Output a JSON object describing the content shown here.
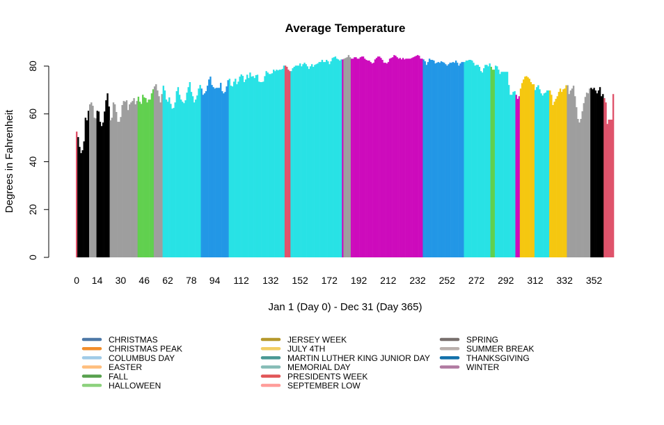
{
  "chart_data": {
    "type": "bar",
    "title": "Average Temperature",
    "xlabel": "Jan 1 (Day 0) - Dec 31 (Day 365)",
    "ylabel": "Degrees in Fahrenheit",
    "ylim": [
      0,
      80
    ],
    "y_ticks": [
      0,
      20,
      40,
      60,
      80
    ],
    "x_ticks": [
      0,
      14,
      30,
      46,
      62,
      78,
      94,
      112,
      132,
      152,
      172,
      192,
      212,
      232,
      252,
      272,
      292,
      312,
      332,
      352
    ],
    "grid": false,
    "legend_placement": "bottom",
    "x_start_day": 0,
    "values": [
      52.6,
      50.3,
      46.2,
      43.6,
      44.8,
      48.5,
      58.4,
      57.3,
      61.3,
      64.0,
      64.8,
      63.4,
      58.4,
      58.1,
      61.3,
      61.0,
      56.7,
      54.9,
      56.4,
      61.0,
      65.7,
      68.6,
      63.1,
      57.3,
      58.4,
      64.8,
      64.0,
      60.8,
      56.7,
      56.7,
      58.7,
      63.7,
      65.4,
      65.1,
      65.7,
      61.6,
      64.0,
      64.8,
      65.4,
      66.6,
      64.0,
      65.4,
      67.2,
      65.1,
      64.2,
      68.0,
      66.9,
      66.6,
      64.8,
      66.0,
      66.0,
      68.6,
      70.3,
      71.5,
      72.4,
      69.8,
      67.4,
      64.8,
      68.3,
      71.8,
      69.8,
      66.0,
      65.1,
      66.9,
      64.2,
      62.2,
      62.5,
      64.8,
      69.5,
      71.2,
      68.0,
      66.0,
      65.1,
      64.5,
      65.7,
      68.9,
      71.2,
      73.3,
      69.2,
      67.4,
      64.8,
      66.0,
      67.7,
      70.6,
      72.1,
      70.6,
      68.0,
      68.6,
      69.5,
      71.8,
      74.4,
      75.6,
      72.1,
      71.2,
      70.6,
      70.9,
      70.9,
      70.9,
      73.0,
      69.5,
      68.6,
      69.2,
      71.5,
      74.1,
      74.7,
      71.8,
      71.5,
      73.5,
      74.7,
      72.4,
      73.5,
      75.6,
      76.5,
      75.9,
      73.3,
      74.4,
      76.4,
      75.0,
      77.3,
      75.6,
      75.8,
      75.0,
      76.2,
      76.4,
      73.5,
      73.3,
      73.3,
      73.5,
      75.8,
      77.9,
      77.3,
      76.7,
      76.7,
      77.0,
      78.5,
      77.9,
      78.5,
      78.2,
      78.5,
      78.5,
      78.8,
      80.2,
      80.2,
      79.7,
      78.5,
      77.9,
      77.9,
      79.1,
      79.7,
      80.2,
      80.2,
      80.2,
      81.1,
      79.9,
      80.8,
      81.4,
      80.8,
      79.9,
      78.8,
      79.9,
      80.8,
      79.7,
      80.5,
      80.8,
      81.1,
      81.7,
      81.7,
      82.6,
      81.7,
      81.7,
      82.6,
      82.0,
      80.8,
      82.0,
      83.4,
      83.7,
      84.0,
      83.1,
      82.8,
      82.3,
      82.8,
      82.8,
      83.1,
      83.4,
      83.7,
      84.6,
      83.7,
      83.1,
      83.1,
      83.7,
      83.7,
      83.1,
      83.1,
      83.7,
      84.0,
      84.0,
      83.1,
      82.6,
      82.3,
      82.3,
      81.7,
      81.1,
      81.4,
      82.8,
      83.4,
      84.0,
      84.0,
      83.4,
      82.6,
      81.4,
      81.4,
      81.1,
      81.7,
      83.1,
      83.4,
      83.7,
      84.6,
      84.3,
      83.7,
      83.1,
      83.4,
      82.8,
      83.4,
      82.8,
      83.1,
      83.1,
      83.1,
      83.1,
      83.4,
      83.7,
      84.0,
      84.3,
      84.6,
      84.3,
      83.1,
      83.1,
      82.8,
      82.0,
      80.5,
      81.7,
      83.1,
      82.6,
      82.6,
      82.3,
      81.1,
      81.4,
      81.7,
      81.4,
      82.0,
      81.7,
      81.4,
      80.8,
      80.2,
      80.8,
      81.4,
      81.4,
      81.7,
      81.4,
      82.3,
      81.4,
      80.2,
      81.1,
      81.7,
      81.7,
      81.7,
      82.3,
      82.3,
      82.6,
      82.6,
      82.3,
      81.4,
      80.2,
      80.5,
      80.5,
      79.7,
      77.9,
      77.3,
      79.1,
      80.5,
      80.5,
      79.9,
      81.1,
      79.7,
      78.5,
      78.5,
      80.2,
      79.9,
      78.5,
      76.7,
      77.6,
      77.6,
      77.6,
      77.6,
      77.6,
      72.1,
      68.0,
      68.0,
      69.2,
      69.5,
      68.0,
      66.3,
      67.4,
      70.6,
      72.9,
      74.4,
      75.6,
      75.8,
      75.3,
      74.7,
      73.3,
      72.4,
      72.4,
      70.0,
      71.2,
      72.0,
      70.3,
      68.6,
      67.7,
      68.6,
      68.9,
      69.8,
      69.8,
      69.8,
      68.0,
      63.7,
      65.1,
      66.3,
      67.4,
      69.2,
      70.6,
      69.2,
      70.3,
      70.6,
      72.0,
      72.0,
      68.3,
      69.8,
      70.6,
      71.8,
      67.4,
      62.8,
      57.9,
      56.4,
      57.9,
      61.1,
      64.5,
      67.1,
      68.9,
      68.6,
      70.6,
      70.9,
      70.3,
      70.9,
      69.8,
      68.6,
      69.8,
      71.2,
      67.4,
      68.3,
      66.6,
      64.8,
      55.8,
      57.6,
      57.6,
      57.6,
      68.3
    ],
    "bar_color_runs": [
      {
        "from": 0,
        "to": 0,
        "color": "#DF536B"
      },
      {
        "from": 1,
        "to": 8,
        "color": "#000000"
      },
      {
        "from": 9,
        "to": 13,
        "color": "#9E9E9E"
      },
      {
        "from": 14,
        "to": 22,
        "color": "#000000"
      },
      {
        "from": 23,
        "to": 41,
        "color": "#9E9E9E"
      },
      {
        "from": 42,
        "to": 52,
        "color": "#61D04F"
      },
      {
        "from": 53,
        "to": 58,
        "color": "#9E9E9E"
      },
      {
        "from": 59,
        "to": 84,
        "color": "#28E2E5"
      },
      {
        "from": 85,
        "to": 103,
        "color": "#2297E6"
      },
      {
        "from": 104,
        "to": 141,
        "color": "#28E2E5"
      },
      {
        "from": 142,
        "to": 145,
        "color": "#DF536B"
      },
      {
        "from": 146,
        "to": 180,
        "color": "#28E2E5"
      },
      {
        "from": 181,
        "to": 181,
        "color": "#CD0BBC"
      },
      {
        "from": 182,
        "to": 186,
        "color": "#9E9E9E"
      },
      {
        "from": 187,
        "to": 235,
        "color": "#CD0BBC"
      },
      {
        "from": 236,
        "to": 263,
        "color": "#2297E6"
      },
      {
        "from": 264,
        "to": 281,
        "color": "#28E2E5"
      },
      {
        "from": 282,
        "to": 284,
        "color": "#61D04F"
      },
      {
        "from": 285,
        "to": 298,
        "color": "#28E2E5"
      },
      {
        "from": 299,
        "to": 301,
        "color": "#CD0BBC"
      },
      {
        "from": 302,
        "to": 311,
        "color": "#F5C710"
      },
      {
        "from": 312,
        "to": 321,
        "color": "#28E2E5"
      },
      {
        "from": 322,
        "to": 333,
        "color": "#F5C710"
      },
      {
        "from": 334,
        "to": 349,
        "color": "#9E9E9E"
      },
      {
        "from": 350,
        "to": 358,
        "color": "#000000"
      },
      {
        "from": 359,
        "to": 365,
        "color": "#DF536B"
      }
    ],
    "legend": [
      {
        "label": "CHRISTMAS",
        "color": "#4E79A7"
      },
      {
        "label": "CHRISTMAS PEAK",
        "color": "#F28E2B"
      },
      {
        "label": "COLUMBUS DAY",
        "color": "#A0CBE8"
      },
      {
        "label": "EASTER",
        "color": "#FFBE7D"
      },
      {
        "label": "FALL",
        "color": "#59A14F"
      },
      {
        "label": "HALLOWEEN",
        "color": "#8CD17D"
      },
      {
        "label": "JERSEY WEEK",
        "color": "#B6992D"
      },
      {
        "label": "JULY 4TH",
        "color": "#F1CE63"
      },
      {
        "label": "MARTIN LUTHER KING JUNIOR DAY",
        "color": "#499894"
      },
      {
        "label": "MEMORIAL DAY",
        "color": "#86BCB6"
      },
      {
        "label": "PRESIDENTS WEEK",
        "color": "#E15759"
      },
      {
        "label": "SEPTEMBER LOW",
        "color": "#FF9D9A"
      },
      {
        "label": "SPRING",
        "color": "#79706E"
      },
      {
        "label": "SUMMER BREAK",
        "color": "#BAB0AC"
      },
      {
        "label": "THANKSGIVING",
        "color": "#1170AA"
      },
      {
        "label": "WINTER",
        "color": "#B07AA1"
      }
    ]
  }
}
